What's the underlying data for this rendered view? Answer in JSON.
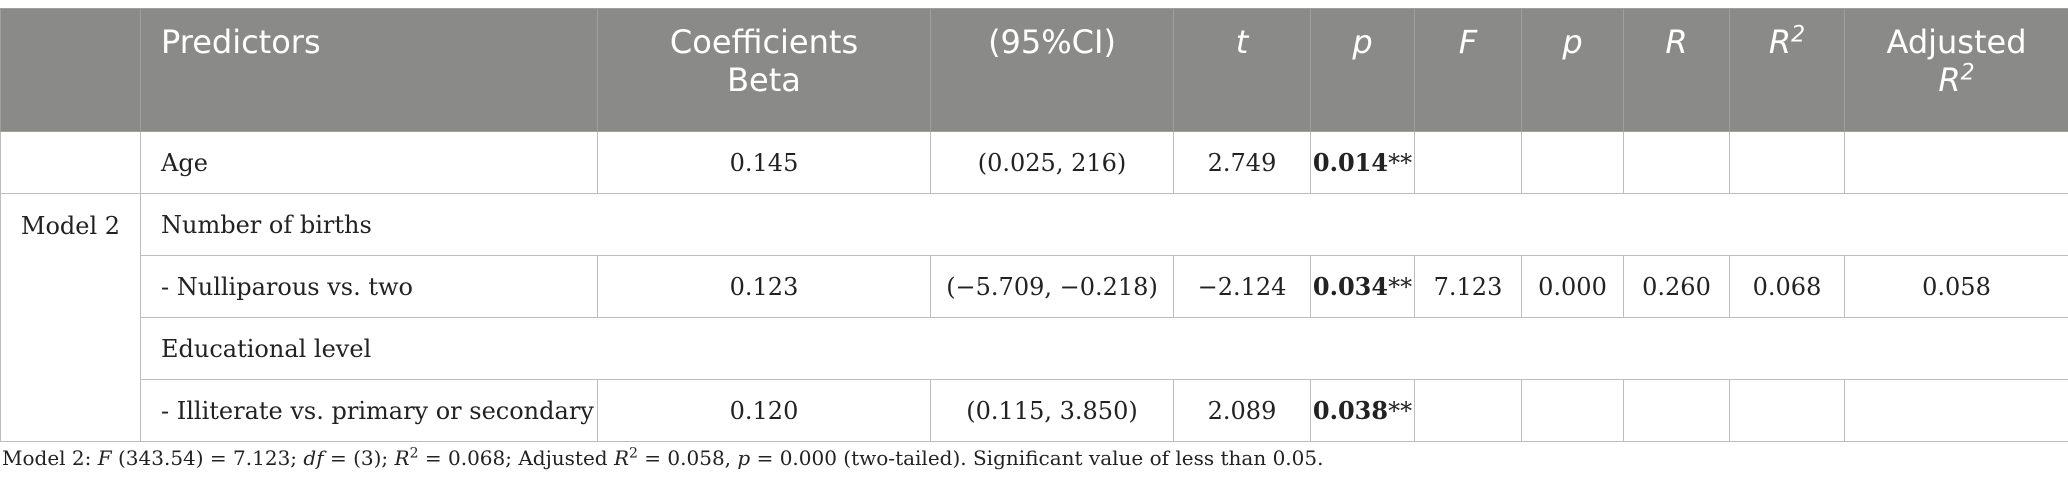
{
  "header": {
    "predictors": "Predictors",
    "coef_line1": "Coefficients",
    "coef_line2": "Beta",
    "ci": "(95%CI)",
    "t": "t",
    "p1": "p",
    "F": "F",
    "p2": "p",
    "R": "R",
    "R2_base": "R",
    "R2_sup": "2",
    "adj_line1": "Adjusted",
    "adjR2_base": "R",
    "adjR2_sup": "2"
  },
  "model_label": "Model 2",
  "rows": [
    {
      "label": "Age",
      "beta": "0.145",
      "ci": "(0.025, 216)",
      "t": "2.749",
      "p_val": "0.014",
      "p_stars": "**"
    },
    {
      "label": "Number of births"
    },
    {
      "label": "- Nulliparous vs. two",
      "beta": "0.123",
      "ci": "(−5.709, −0.218)",
      "t": "−2.124",
      "p_val": "0.034",
      "p_stars": "**",
      "F": "7.123",
      "p_model": "0.000",
      "R": "0.260",
      "R2": "0.068",
      "adjR2": "0.058"
    },
    {
      "label": "Educational level"
    },
    {
      "label": "- Illiterate vs. primary or secondary",
      "beta": "0.120",
      "ci": "(0.115, 3.850)",
      "t": "2.089",
      "p_val": "0.038",
      "p_stars": "**"
    }
  ],
  "footnote": {
    "model": "Model 2: ",
    "F_sym": "F",
    "F_args": " (343.54) = 7.123; ",
    "df_sym": "df",
    "df_val": " = (3); ",
    "R2_sym": "R",
    "R2_sup": "2",
    "R2_val": " = 0.068; Adjusted ",
    "adjR2_sym": "R",
    "adjR2_sup": "2",
    "adjR2_val": " = 0.058, ",
    "p_sym": "p",
    "p_val": " = 0.000 (two-tailed). Significant value of less than 0.05."
  }
}
